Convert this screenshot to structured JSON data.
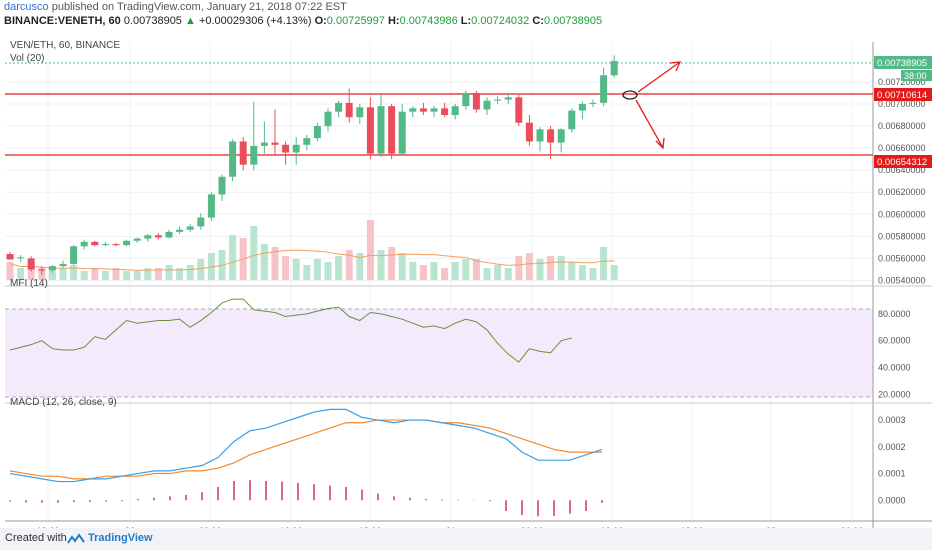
{
  "header": {
    "author": "darcusco",
    "published": "published on TradingView.com, January 21, 2018 07:22 EST",
    "symbol": "BINANCE:VENETH, 60",
    "last": "0.00738905",
    "change_arrow": "▲",
    "change": "+0.00029306 (+4.13%)",
    "open_label": "O:",
    "open": "0.00725997",
    "high_label": "H:",
    "high": "0.00743986",
    "low_label": "L:",
    "low": "0.00724032",
    "close_label": "C:",
    "close": "0.00738905"
  },
  "panes": {
    "main_title": "VEN/ETH, 60, BINANCE",
    "vol_title": "Vol (20)",
    "mfi_title": "MFI (14)",
    "macd_title": "MACD (12, 26, close, 9)"
  },
  "price_axis": {
    "ticks": [
      "0.00720000",
      "0.00700000",
      "0.00680000",
      "0.00660000",
      "0.00640000",
      "0.00620000",
      "0.00600000",
      "0.00580000",
      "0.00560000",
      "0.00540000"
    ],
    "last_price_label": "0.00738905",
    "countdown": "38:00",
    "resistance_label": "0.00710614",
    "support_label": "0.00654312"
  },
  "mfi_axis": {
    "ticks": [
      "80.0000",
      "60.0000",
      "40.0000",
      "20.0000"
    ]
  },
  "macd_axis": {
    "ticks": [
      "0.0003",
      "0.0002",
      "0.0001",
      "0.0000"
    ]
  },
  "time_axis": {
    "ticks": [
      "18:00",
      "20",
      "06:00",
      "12:00",
      "18:00",
      "21",
      "06:00",
      "12:00",
      "18:00",
      "22",
      "06:00"
    ]
  },
  "footer": {
    "created_with": "Created with",
    "brand": "TradingView"
  },
  "colors": {
    "up": "#53b987",
    "down": "#eb4d5c",
    "line": "#e31b1b",
    "mfi": "#6d8f3a",
    "macd": "#3a9ee4",
    "signal": "#f28a2f",
    "hist": "#d0306a",
    "mfi_band": "#f3ebfb",
    "brand": "#1f7dc9"
  },
  "chart_data": {
    "type": "candlestick",
    "interval": "60",
    "candles": [
      {
        "o": 0.00564,
        "h": 0.00566,
        "l": 0.00559,
        "c": 0.00559
      },
      {
        "o": 0.00561,
        "h": 0.00563,
        "l": 0.00557,
        "c": 0.00561
      },
      {
        "o": 0.0056,
        "h": 0.00562,
        "l": 0.00548,
        "c": 0.0055
      },
      {
        "o": 0.0055,
        "h": 0.00553,
        "l": 0.00545,
        "c": 0.00549
      },
      {
        "o": 0.00549,
        "h": 0.00554,
        "l": 0.00547,
        "c": 0.00553
      },
      {
        "o": 0.00553,
        "h": 0.00558,
        "l": 0.00551,
        "c": 0.00555
      },
      {
        "o": 0.00555,
        "h": 0.00572,
        "l": 0.00554,
        "c": 0.00571
      },
      {
        "o": 0.00571,
        "h": 0.00577,
        "l": 0.00568,
        "c": 0.00575
      },
      {
        "o": 0.00575,
        "h": 0.00576,
        "l": 0.00571,
        "c": 0.00572
      },
      {
        "o": 0.00572,
        "h": 0.00575,
        "l": 0.00571,
        "c": 0.00573
      },
      {
        "o": 0.00573,
        "h": 0.00574,
        "l": 0.00571,
        "c": 0.00572
      },
      {
        "o": 0.00572,
        "h": 0.00577,
        "l": 0.00571,
        "c": 0.00576
      },
      {
        "o": 0.00576,
        "h": 0.00579,
        "l": 0.00574,
        "c": 0.00578
      },
      {
        "o": 0.00578,
        "h": 0.00582,
        "l": 0.00575,
        "c": 0.00581
      },
      {
        "o": 0.00581,
        "h": 0.00583,
        "l": 0.00577,
        "c": 0.00579
      },
      {
        "o": 0.00579,
        "h": 0.00586,
        "l": 0.00578,
        "c": 0.00584
      },
      {
        "o": 0.00584,
        "h": 0.00589,
        "l": 0.00582,
        "c": 0.00586
      },
      {
        "o": 0.00586,
        "h": 0.00591,
        "l": 0.00584,
        "c": 0.00589
      },
      {
        "o": 0.00589,
        "h": 0.00601,
        "l": 0.00586,
        "c": 0.00597
      },
      {
        "o": 0.00597,
        "h": 0.0062,
        "l": 0.00594,
        "c": 0.00618
      },
      {
        "o": 0.00618,
        "h": 0.00636,
        "l": 0.00612,
        "c": 0.00634
      },
      {
        "o": 0.00634,
        "h": 0.00668,
        "l": 0.0063,
        "c": 0.00666
      },
      {
        "o": 0.00666,
        "h": 0.0067,
        "l": 0.0064,
        "c": 0.00645
      },
      {
        "o": 0.00645,
        "h": 0.00702,
        "l": 0.0064,
        "c": 0.00662
      },
      {
        "o": 0.00662,
        "h": 0.00684,
        "l": 0.00655,
        "c": 0.00665
      },
      {
        "o": 0.00665,
        "h": 0.00695,
        "l": 0.00653,
        "c": 0.00663
      },
      {
        "o": 0.00663,
        "h": 0.00666,
        "l": 0.00645,
        "c": 0.00656
      },
      {
        "o": 0.00656,
        "h": 0.0067,
        "l": 0.00645,
        "c": 0.00663
      },
      {
        "o": 0.00663,
        "h": 0.00672,
        "l": 0.00658,
        "c": 0.00669
      },
      {
        "o": 0.00669,
        "h": 0.00683,
        "l": 0.00666,
        "c": 0.0068
      },
      {
        "o": 0.0068,
        "h": 0.00696,
        "l": 0.00675,
        "c": 0.00693
      },
      {
        "o": 0.00693,
        "h": 0.00703,
        "l": 0.00688,
        "c": 0.00701
      },
      {
        "o": 0.00701,
        "h": 0.00714,
        "l": 0.00683,
        "c": 0.00688
      },
      {
        "o": 0.00688,
        "h": 0.007,
        "l": 0.00682,
        "c": 0.00697
      },
      {
        "o": 0.00697,
        "h": 0.00706,
        "l": 0.0065,
        "c": 0.00655
      },
      {
        "o": 0.00655,
        "h": 0.00708,
        "l": 0.00652,
        "c": 0.00698
      },
      {
        "o": 0.00698,
        "h": 0.007,
        "l": 0.0065,
        "c": 0.00655
      },
      {
        "o": 0.00655,
        "h": 0.007,
        "l": 0.00653,
        "c": 0.00693
      },
      {
        "o": 0.00693,
        "h": 0.00698,
        "l": 0.00688,
        "c": 0.00696
      },
      {
        "o": 0.00696,
        "h": 0.00701,
        "l": 0.0069,
        "c": 0.00693
      },
      {
        "o": 0.00693,
        "h": 0.00698,
        "l": 0.00688,
        "c": 0.00696
      },
      {
        "o": 0.00696,
        "h": 0.00701,
        "l": 0.00688,
        "c": 0.0069
      },
      {
        "o": 0.0069,
        "h": 0.007,
        "l": 0.00686,
        "c": 0.00698
      },
      {
        "o": 0.00698,
        "h": 0.00712,
        "l": 0.00695,
        "c": 0.0071
      },
      {
        "o": 0.0071,
        "h": 0.00712,
        "l": 0.00692,
        "c": 0.00695
      },
      {
        "o": 0.00695,
        "h": 0.00706,
        "l": 0.0069,
        "c": 0.00703
      },
      {
        "o": 0.00703,
        "h": 0.00707,
        "l": 0.007,
        "c": 0.00704
      },
      {
        "o": 0.00704,
        "h": 0.0071,
        "l": 0.007,
        "c": 0.00706
      },
      {
        "o": 0.00706,
        "h": 0.00708,
        "l": 0.0068,
        "c": 0.00683
      },
      {
        "o": 0.00683,
        "h": 0.0069,
        "l": 0.00662,
        "c": 0.00666
      },
      {
        "o": 0.00666,
        "h": 0.00679,
        "l": 0.00657,
        "c": 0.00677
      },
      {
        "o": 0.00677,
        "h": 0.0068,
        "l": 0.0065,
        "c": 0.00665
      },
      {
        "o": 0.00665,
        "h": 0.00678,
        "l": 0.00656,
        "c": 0.00677
      },
      {
        "o": 0.00677,
        "h": 0.00696,
        "l": 0.00674,
        "c": 0.00694
      },
      {
        "o": 0.00694,
        "h": 0.00702,
        "l": 0.00686,
        "c": 0.007
      },
      {
        "o": 0.007,
        "h": 0.00704,
        "l": 0.00697,
        "c": 0.00701
      },
      {
        "o": 0.00701,
        "h": 0.00733,
        "l": 0.00698,
        "c": 0.00726
      },
      {
        "o": 0.00726,
        "h": 0.00744,
        "l": 0.00724,
        "c": 0.00739
      }
    ],
    "volume_rel": [
      0.3,
      0.2,
      0.25,
      0.2,
      0.15,
      0.2,
      0.25,
      0.15,
      0.2,
      0.15,
      0.2,
      0.15,
      0.15,
      0.2,
      0.2,
      0.25,
      0.2,
      0.25,
      0.35,
      0.45,
      0.5,
      0.75,
      0.7,
      0.9,
      0.6,
      0.55,
      0.4,
      0.35,
      0.25,
      0.35,
      0.3,
      0.4,
      0.5,
      0.45,
      1.0,
      0.5,
      0.55,
      0.45,
      0.3,
      0.25,
      0.3,
      0.2,
      0.3,
      0.35,
      0.35,
      0.2,
      0.25,
      0.2,
      0.4,
      0.45,
      0.35,
      0.4,
      0.4,
      0.3,
      0.25,
      0.2,
      0.55,
      0.25
    ],
    "price_levels": [
      0.00710614,
      0.00654312
    ],
    "price_range": [
      0.00535,
      0.00748
    ],
    "mfi": [
      53,
      55,
      57,
      60,
      54,
      53,
      53,
      55,
      63,
      61,
      68,
      75,
      73,
      74,
      75,
      75,
      76,
      70,
      75,
      81,
      88,
      91,
      91,
      83,
      82,
      81,
      78,
      79,
      80,
      82,
      84,
      85,
      78,
      75,
      81,
      80,
      78,
      76,
      73,
      70,
      71,
      69,
      73,
      76,
      74,
      68,
      58,
      50,
      44,
      54,
      52,
      51,
      60,
      62
    ],
    "mfi_range": [
      15,
      100
    ],
    "macd": [
      0.0001,
      9e-05,
      8e-05,
      7e-05,
      7e-05,
      8e-05,
      8e-05,
      9e-05,
      0.0001,
      0.00011,
      0.00011,
      0.00012,
      0.00013,
      0.00016,
      0.00022,
      0.00026,
      0.00027,
      0.00029,
      0.00031,
      0.00033,
      0.00034,
      0.00034,
      0.00031,
      0.0003,
      0.00029,
      0.0003,
      0.0003,
      0.00029,
      0.00028,
      0.00027,
      0.00025,
      0.00023,
      0.00018,
      0.00015,
      0.00015,
      0.00015,
      0.00017,
      0.00019
    ],
    "signal": [
      0.00011,
      0.0001,
      9e-05,
      9e-05,
      8e-05,
      8e-05,
      9e-05,
      9e-05,
      9e-05,
      0.0001,
      0.0001,
      0.00011,
      0.00011,
      0.00012,
      0.00014,
      0.00017,
      0.00019,
      0.00021,
      0.00023,
      0.00025,
      0.00027,
      0.00029,
      0.00029,
      0.0003,
      0.0003,
      0.0003,
      0.0003,
      0.00029,
      0.00029,
      0.00028,
      0.00027,
      0.00025,
      0.00023,
      0.00021,
      0.00019,
      0.00018,
      0.00018,
      0.00018
    ],
    "hist": [
      -5e-06,
      -8e-06,
      -9e-06,
      -9e-06,
      -7e-06,
      -6e-06,
      -5e-06,
      -4e-06,
      5e-06,
      1e-05,
      1.5e-05,
      2e-05,
      3e-05,
      5e-05,
      7.2e-05,
      7.5e-05,
      7.2e-05,
      7e-05,
      6.5e-05,
      6e-05,
      5.5e-05,
      5e-05,
      4e-05,
      2.5e-05,
      1.5e-05,
      1e-05,
      5e-06,
      3e-06,
      2e-06,
      1e-06,
      -4e-06,
      -4e-05,
      -5.5e-05,
      -6e-05,
      -5.8e-05,
      -5e-05,
      -4e-05,
      -1e-05
    ],
    "macd_range": [
      -7e-05,
      0.00036
    ]
  }
}
